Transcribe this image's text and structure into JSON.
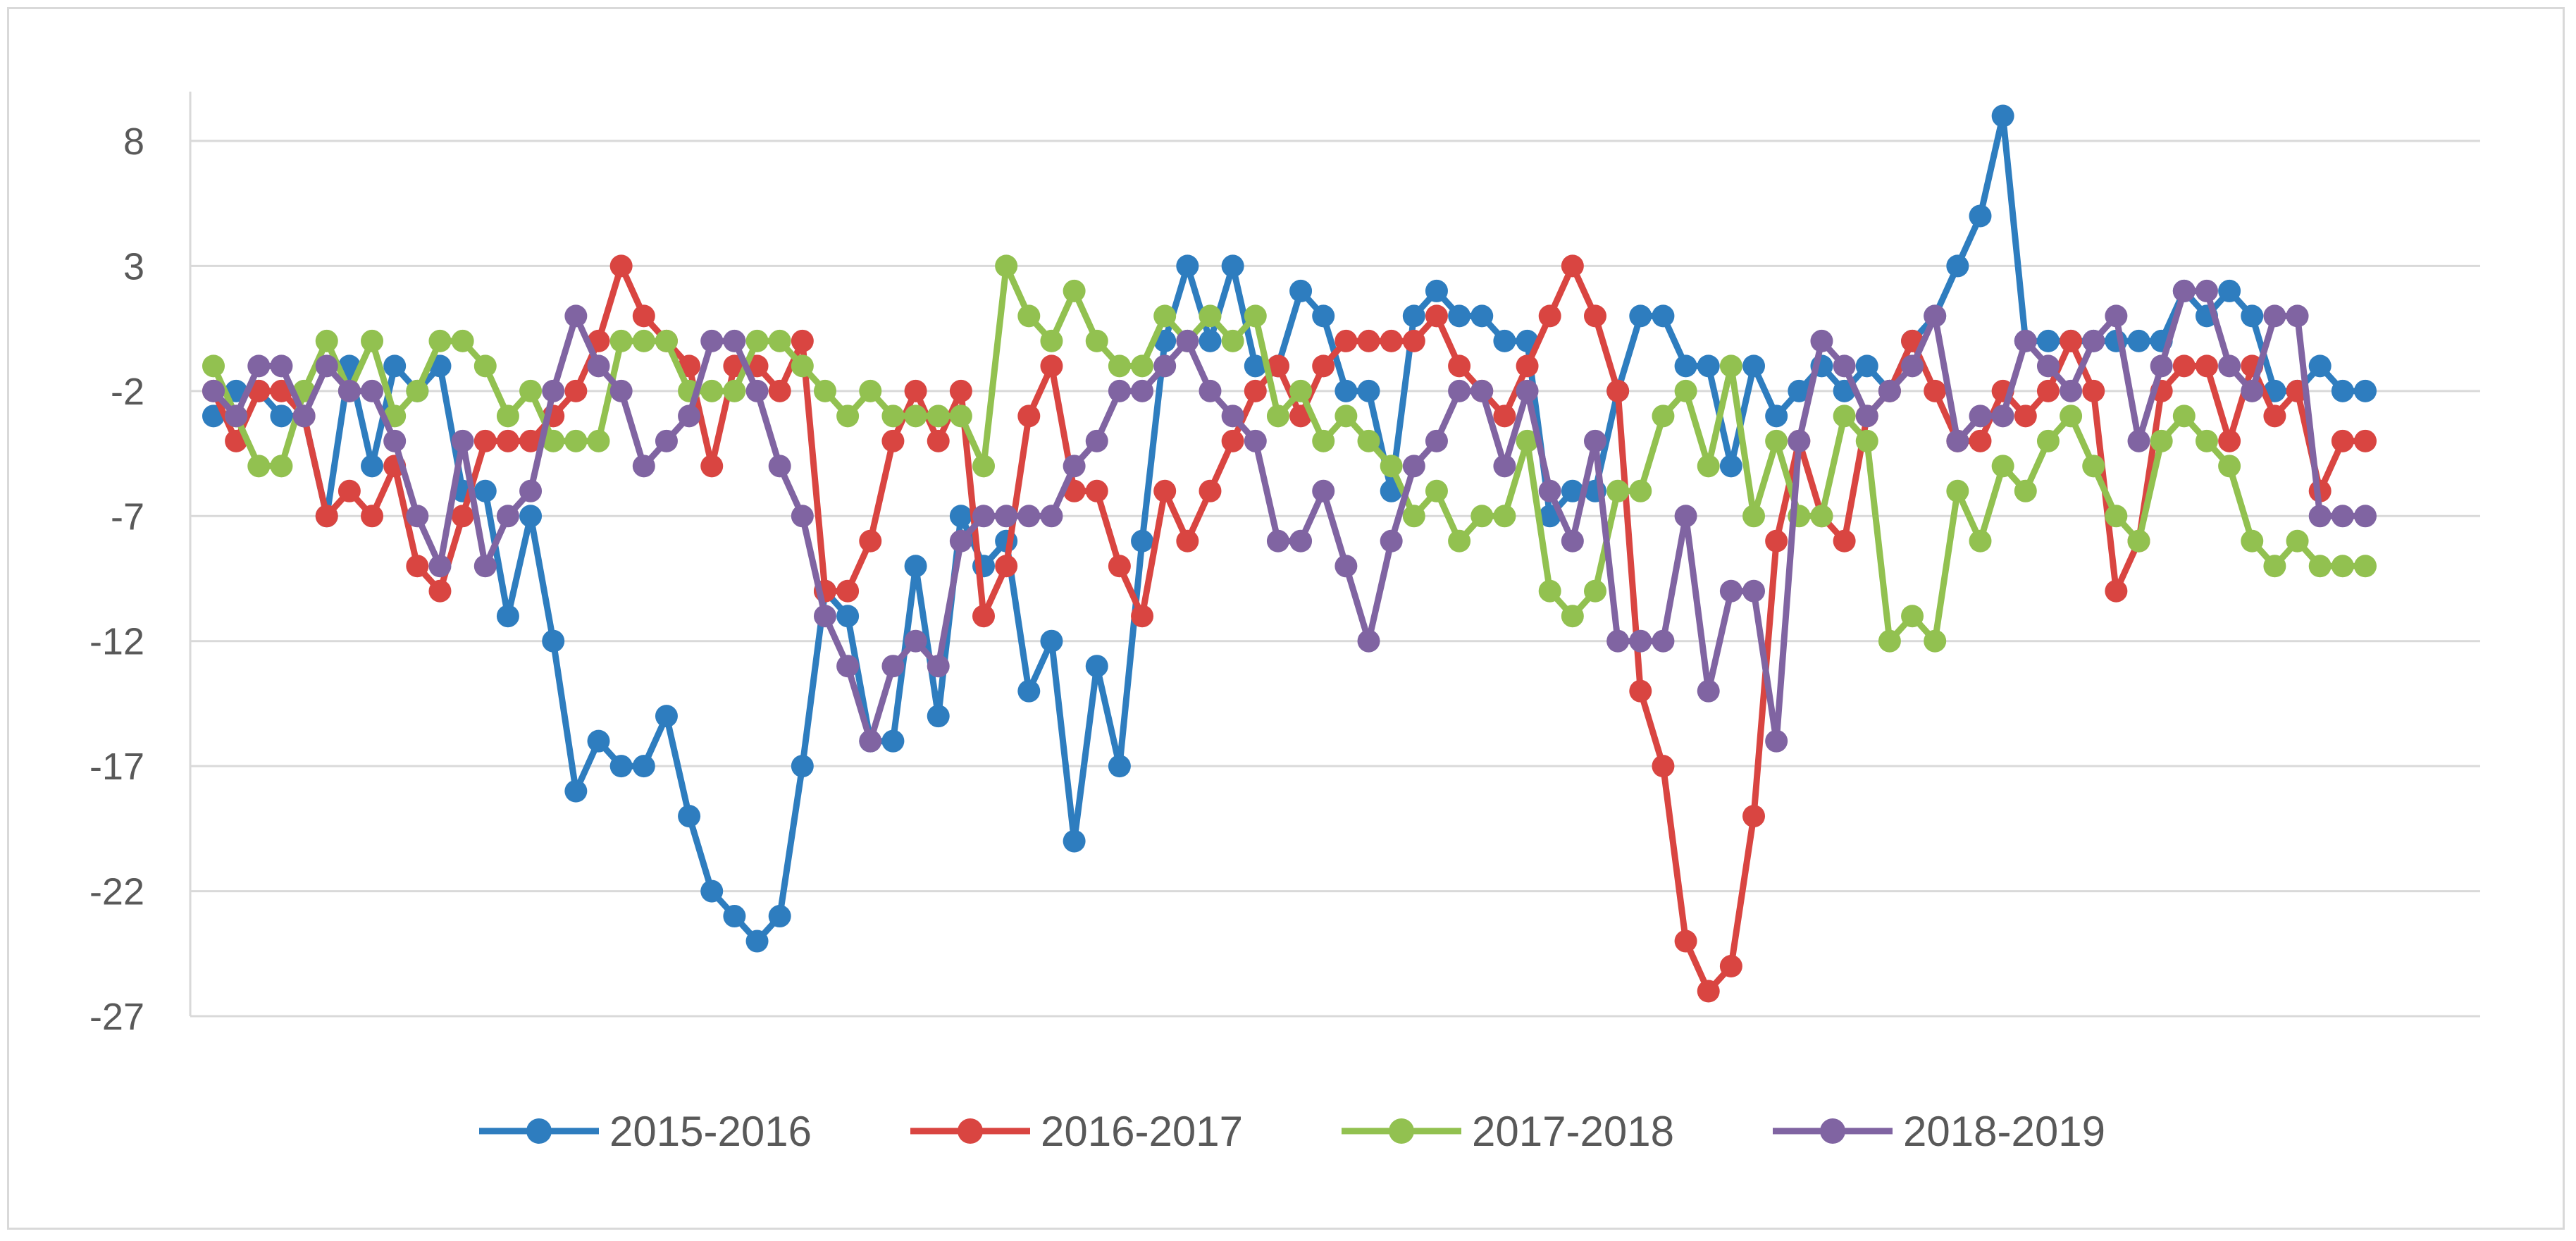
{
  "chart_data": {
    "type": "line",
    "title": "",
    "xlabel": "",
    "ylabel": "",
    "ylim": [
      -27,
      10
    ],
    "y_ticks": [
      8,
      3,
      -2,
      -7,
      -12,
      -17,
      -22,
      -27
    ],
    "y_tick_labels": [
      "8",
      "3",
      "-2",
      "-7",
      "-12",
      "-17",
      "-22",
      "-27"
    ],
    "grid": true,
    "legend_position": "bottom",
    "point_count": 96,
    "series": [
      {
        "name": "2015-2016",
        "color": "#2e7dbf",
        "values": [
          -3,
          -2,
          -2,
          -3,
          -3,
          -7,
          -1,
          -5,
          -1,
          -2,
          -1,
          -6,
          -6,
          -11,
          -7,
          -12,
          -18,
          -16,
          -17,
          -17,
          -15,
          -19,
          -22,
          -23,
          -24,
          -23,
          -17,
          -10,
          -11,
          -16,
          -16,
          -9,
          -15,
          -7,
          -9,
          -8,
          -14,
          -12,
          -20,
          -13,
          -17,
          -8,
          0,
          3,
          0,
          3,
          -1,
          -1,
          2,
          1,
          -2,
          -2,
          -6,
          1,
          2,
          1,
          1,
          0,
          0,
          -7,
          -6,
          -6,
          -2,
          1,
          1,
          -1,
          -1,
          -5,
          -1,
          -3,
          -2,
          -1,
          -2,
          -1,
          -2,
          0,
          1,
          3,
          5,
          9,
          0,
          0,
          0,
          0,
          0,
          0,
          0,
          2,
          1,
          2,
          1,
          -2,
          -2,
          -1,
          -2,
          -2
        ],
        "note": "values estimated against gridlines"
      },
      {
        "name": "2016-2017",
        "color": "#d94541",
        "values": [
          -2,
          -4,
          -2,
          -2,
          -3,
          -7,
          -6,
          -7,
          -5,
          -9,
          -10,
          -7,
          -4,
          -4,
          -4,
          -3,
          -2,
          0,
          3,
          1,
          0,
          -1,
          -5,
          -1,
          -1,
          -2,
          0,
          -10,
          -10,
          -8,
          -4,
          -2,
          -4,
          -2,
          -11,
          -9,
          -3,
          -1,
          -6,
          -6,
          -9,
          -11,
          -6,
          -8,
          -6,
          -4,
          -2,
          -1,
          -3,
          -1,
          0,
          0,
          0,
          0,
          1,
          -1,
          -2,
          -3,
          -1,
          1,
          3,
          1,
          -2,
          -14,
          -17,
          -24,
          -26,
          -25,
          -19,
          -8,
          -4,
          -7,
          -8,
          -3,
          -2,
          0,
          -2,
          -4,
          -4,
          -2,
          -3,
          -2,
          0,
          -2,
          -10,
          -8,
          -2,
          -1,
          -1,
          -4,
          -1,
          -3,
          -2,
          -6,
          -4,
          -4
        ],
        "note": "values estimated against gridlines"
      },
      {
        "name": "2017-2018",
        "color": "#92c150",
        "values": [
          -1,
          -3,
          -5,
          -5,
          -2,
          0,
          -2,
          0,
          -3,
          -2,
          0,
          0,
          -1,
          -3,
          -2,
          -4,
          -4,
          -4,
          0,
          0,
          0,
          -2,
          -2,
          -2,
          0,
          0,
          -1,
          -2,
          -3,
          -2,
          -3,
          -3,
          -3,
          -3,
          -5,
          3,
          1,
          0,
          2,
          0,
          -1,
          -1,
          1,
          0,
          1,
          0,
          1,
          -3,
          -2,
          -4,
          -3,
          -4,
          -5,
          -7,
          -6,
          -8,
          -7,
          -7,
          -4,
          -10,
          -11,
          -10,
          -6,
          -6,
          -3,
          -2,
          -5,
          -1,
          -7,
          -4,
          -7,
          -7,
          -3,
          -4,
          -12,
          -11,
          -12,
          -6,
          -8,
          -5,
          -6,
          -4,
          -3,
          -5,
          -7,
          -8,
          -4,
          -3,
          -4,
          -5,
          -8,
          -9,
          -8,
          -9,
          -9,
          -9
        ],
        "note": "values estimated against gridlines"
      },
      {
        "name": "2018-2019",
        "color": "#8064a2",
        "values": [
          -2,
          -3,
          -1,
          -1,
          -3,
          -1,
          -2,
          -2,
          -4,
          -7,
          -9,
          -4,
          -9,
          -7,
          -6,
          -2,
          1,
          -1,
          -2,
          -5,
          -4,
          -3,
          0,
          0,
          -2,
          -5,
          -7,
          -11,
          -13,
          -16,
          -13,
          -12,
          -13,
          -8,
          -7,
          -7,
          -7,
          -7,
          -5,
          -4,
          -2,
          -2,
          -1,
          0,
          -2,
          -3,
          -4,
          -8,
          -8,
          -6,
          -9,
          -12,
          -8,
          -5,
          -4,
          -2,
          -2,
          -5,
          -2,
          -6,
          -8,
          -4,
          -12,
          -12,
          -12,
          -7,
          -14,
          -10,
          -10,
          -16,
          -4,
          0,
          -1,
          -3,
          -2,
          -1,
          1,
          -4,
          -3,
          -3,
          0,
          -1,
          -2,
          0,
          1,
          -4,
          -1,
          2,
          2,
          -1,
          -2,
          1,
          1,
          -7,
          -7,
          -7
        ],
        "note": "values estimated against gridlines"
      }
    ]
  }
}
